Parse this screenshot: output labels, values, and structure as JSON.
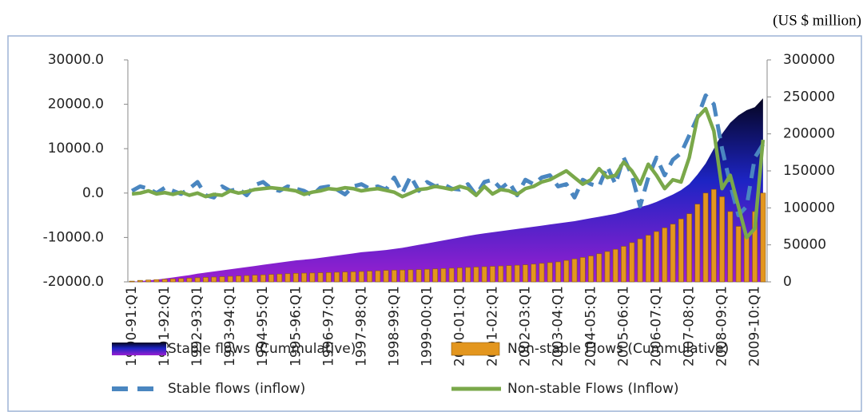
{
  "chart_data": {
    "type": "combo",
    "unit_note": "(US $ million)",
    "categories": [
      "1990-91:Q1",
      null,
      null,
      null,
      "1991-92:Q1",
      null,
      null,
      null,
      "1992-93:Q1",
      null,
      null,
      null,
      "1993-94:Q1",
      null,
      null,
      null,
      "1994-95:Q1",
      null,
      null,
      null,
      "1995-96:Q1",
      null,
      null,
      null,
      "1996-97:Q1",
      null,
      null,
      null,
      "1997-98:Q1",
      null,
      null,
      null,
      "1998-99:Q1",
      null,
      null,
      null,
      "1999-00:Q1",
      null,
      null,
      null,
      "2000-01:Q1",
      null,
      null,
      null,
      "2001-02:Q1",
      null,
      null,
      null,
      "2002-03:Q1",
      null,
      null,
      null,
      "2003-04:Q1",
      null,
      null,
      null,
      "2004-05:Q1",
      null,
      null,
      null,
      "2005-06:Q1",
      null,
      null,
      null,
      "2006-07:Q1",
      null,
      null,
      null,
      "2007-08:Q1",
      null,
      null,
      null,
      "2008-09:Q1",
      null,
      null,
      null,
      "2009-10:Q1",
      null
    ],
    "ylim": [
      -20000,
      30000
    ],
    "yticks": [
      {
        "value": -20000,
        "label": "-20000.0"
      },
      {
        "value": -10000,
        "label": "-10000.0"
      },
      {
        "value": 0,
        "label": "0.0"
      },
      {
        "value": 10000,
        "label": "10000.0"
      },
      {
        "value": 20000,
        "label": "20000.0"
      },
      {
        "value": 30000,
        "label": "30000.0"
      }
    ],
    "y2lim": [
      0,
      300000
    ],
    "y2ticks": [
      0,
      50000,
      100000,
      150000,
      200000,
      250000,
      300000
    ],
    "legend": "bottom",
    "series": [
      {
        "name": "Stable flows (Cummulative)",
        "type": "area",
        "axis": "y2",
        "color": "#1a1f9a",
        "values": [
          0,
          1000,
          2000,
          3000,
          4500,
          6000,
          7500,
          9000,
          11000,
          12500,
          14000,
          15500,
          17000,
          18500,
          20000,
          21500,
          23000,
          24500,
          26000,
          27500,
          29000,
          30000,
          31000,
          32500,
          34000,
          35500,
          37000,
          38500,
          40000,
          41000,
          42000,
          43000,
          44500,
          46000,
          48000,
          50000,
          52000,
          54000,
          56000,
          58000,
          60000,
          62000,
          64000,
          65500,
          67000,
          68500,
          70000,
          71500,
          73000,
          74500,
          76000,
          77500,
          79000,
          80500,
          82000,
          84000,
          86000,
          88000,
          90000,
          92000,
          95000,
          98000,
          101000,
          104000,
          108000,
          113000,
          118000,
          124000,
          132000,
          145000,
          160000,
          180000,
          200000,
          215000,
          225000,
          232000,
          236000,
          248000
        ]
      },
      {
        "name": "Non-stable Flows (Cummulative)",
        "type": "bar",
        "axis": "y2",
        "color": "#e3961e",
        "values": [
          1000,
          2000,
          2500,
          3000,
          3500,
          4000,
          4500,
          5000,
          5500,
          6000,
          6500,
          7000,
          7500,
          8000,
          8500,
          9000,
          9500,
          10000,
          10500,
          11000,
          11500,
          11800,
          12000,
          12300,
          12600,
          13000,
          13300,
          13600,
          14000,
          14500,
          15000,
          15500,
          15800,
          16000,
          16300,
          16600,
          17000,
          17500,
          18000,
          18500,
          19000,
          19500,
          20000,
          20500,
          21000,
          21500,
          22000,
          22500,
          23000,
          24000,
          25000,
          26000,
          27000,
          29000,
          31000,
          33000,
          35000,
          38000,
          41000,
          44000,
          48000,
          53000,
          58000,
          63000,
          68000,
          73000,
          78000,
          85000,
          92000,
          105000,
          120000,
          125000,
          115000,
          95000,
          75000,
          62000,
          95000,
          120000
        ]
      },
      {
        "name": "Stable flows (inflow)",
        "type": "line",
        "dashed": true,
        "color": "#4a86c0",
        "values": [
          500,
          1500,
          1000,
          0,
          1200,
          500,
          -200,
          1000,
          2500,
          -500,
          -1000,
          1500,
          500,
          1000,
          -500,
          1800,
          2500,
          1000,
          500,
          1500,
          1000,
          500,
          -500,
          1200,
          1500,
          800,
          -300,
          1500,
          2000,
          1000,
          1500,
          800,
          3500,
          0,
          3800,
          500,
          2500,
          1500,
          2000,
          1000,
          800,
          2000,
          -500,
          2500,
          3000,
          1000,
          2500,
          -500,
          3000,
          2000,
          3500,
          4000,
          1500,
          2000,
          -1000,
          3000,
          2000,
          1500,
          6000,
          2000,
          8000,
          4000,
          -3000,
          3500,
          8000,
          4000,
          7500,
          9000,
          13000,
          17000,
          22000,
          20000,
          10000,
          2000,
          -5000,
          -3000,
          8000,
          11000
        ]
      },
      {
        "name": "Non-stable Flows (Inflow)",
        "type": "line",
        "dashed": false,
        "color": "#7aa84a",
        "values": [
          -200,
          0,
          500,
          -200,
          100,
          -300,
          200,
          -500,
          0,
          -800,
          -300,
          -500,
          500,
          0,
          300,
          800,
          1000,
          1200,
          1000,
          800,
          500,
          -300,
          200,
          500,
          1000,
          800,
          1200,
          1000,
          500,
          800,
          1000,
          600,
          200,
          -800,
          0,
          800,
          1000,
          1500,
          1200,
          800,
          1500,
          1000,
          -500,
          1500,
          -200,
          800,
          500,
          -300,
          1000,
          1500,
          2500,
          3000,
          4000,
          5000,
          3500,
          2000,
          3000,
          5500,
          3500,
          4000,
          7000,
          5000,
          2000,
          6500,
          4000,
          1000,
          3000,
          2500,
          8000,
          17000,
          19000,
          14000,
          1000,
          4000,
          -3000,
          -10000,
          -8000,
          12000
        ]
      }
    ]
  }
}
